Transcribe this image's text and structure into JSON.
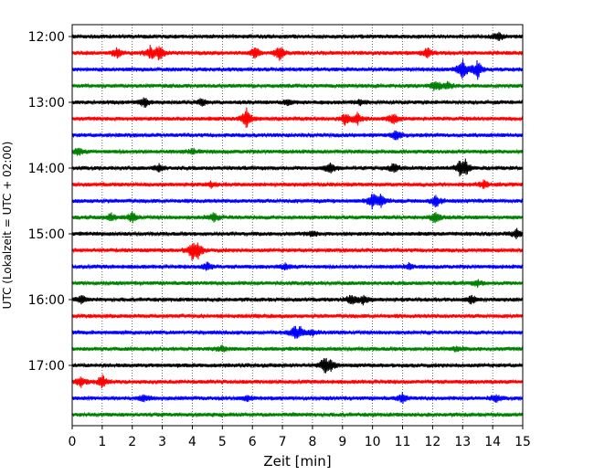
{
  "chart_data": {
    "type": "line",
    "title": "",
    "xlabel": "Zeit  [min]",
    "ylabel": "UTC (Lokalzeit = UTC + 02:00)",
    "xlim": [
      0,
      15
    ],
    "x_ticks": [
      0,
      1,
      2,
      3,
      4,
      5,
      6,
      7,
      8,
      9,
      10,
      11,
      12,
      13,
      14,
      15
    ],
    "y_tick_labels": [
      "12:00",
      "13:00",
      "14:00",
      "15:00",
      "16:00",
      "17:00"
    ],
    "vertical_grid": true,
    "trace_interval_minutes": 15,
    "trace_colors": [
      "#000000",
      "#ff0000",
      "#0000ff",
      "#008000"
    ],
    "traces": [
      {
        "start": "12:00",
        "events": [
          [
            14.2,
            0.5
          ]
        ]
      },
      {
        "start": "12:15",
        "events": [
          [
            1.5,
            0.6
          ],
          [
            2.6,
            0.7
          ],
          [
            2.9,
            0.8
          ],
          [
            6.1,
            0.6
          ],
          [
            6.9,
            0.8
          ],
          [
            11.8,
            0.6
          ]
        ]
      },
      {
        "start": "12:30",
        "events": [
          [
            13.0,
            1.2
          ],
          [
            13.5,
            1.0
          ]
        ]
      },
      {
        "start": "12:45",
        "events": [
          [
            12.1,
            0.6
          ],
          [
            12.5,
            0.4
          ]
        ]
      },
      {
        "start": "13:00",
        "events": [
          [
            2.4,
            0.5
          ],
          [
            4.3,
            0.4
          ],
          [
            7.2,
            0.4
          ],
          [
            9.6,
            0.3
          ]
        ]
      },
      {
        "start": "13:15",
        "events": [
          [
            5.8,
            1.1
          ],
          [
            9.1,
            0.7
          ],
          [
            9.5,
            0.6
          ],
          [
            10.7,
            0.6
          ]
        ]
      },
      {
        "start": "13:30",
        "events": [
          [
            10.8,
            0.6
          ]
        ]
      },
      {
        "start": "13:45",
        "events": [
          [
            0.2,
            0.4
          ],
          [
            4.0,
            0.3
          ]
        ]
      },
      {
        "start": "14:00",
        "events": [
          [
            2.9,
            0.4
          ],
          [
            8.6,
            0.6
          ],
          [
            10.7,
            0.5
          ],
          [
            12.9,
            0.6
          ],
          [
            13.1,
            0.8
          ]
        ]
      },
      {
        "start": "14:15",
        "events": [
          [
            13.7,
            0.4
          ],
          [
            4.6,
            0.3
          ]
        ]
      },
      {
        "start": "14:30",
        "events": [
          [
            10.0,
            0.8
          ],
          [
            10.3,
            0.7
          ],
          [
            12.1,
            0.7
          ]
        ]
      },
      {
        "start": "14:45",
        "events": [
          [
            1.3,
            0.4
          ],
          [
            2.0,
            0.5
          ],
          [
            4.7,
            0.5
          ],
          [
            12.1,
            0.7
          ]
        ]
      },
      {
        "start": "15:00",
        "events": [
          [
            8.0,
            0.3
          ],
          [
            14.8,
            0.5
          ]
        ]
      },
      {
        "start": "15:15",
        "events": [
          [
            4.0,
            0.9
          ],
          [
            4.2,
            0.7
          ]
        ]
      },
      {
        "start": "15:30",
        "events": [
          [
            4.5,
            0.5
          ],
          [
            7.1,
            0.3
          ],
          [
            11.2,
            0.3
          ]
        ]
      },
      {
        "start": "15:45",
        "events": [
          [
            13.5,
            0.3
          ]
        ]
      },
      {
        "start": "16:00",
        "events": [
          [
            0.3,
            0.4
          ],
          [
            9.3,
            0.6
          ],
          [
            9.7,
            0.5
          ],
          [
            13.3,
            0.5
          ]
        ]
      },
      {
        "start": "16:15",
        "events": []
      },
      {
        "start": "16:30",
        "events": [
          [
            7.4,
            0.6
          ],
          [
            7.6,
            0.4
          ],
          [
            8.0,
            0.3
          ]
        ]
      },
      {
        "start": "16:45",
        "events": [
          [
            5.0,
            0.3
          ],
          [
            12.8,
            0.3
          ]
        ]
      },
      {
        "start": "17:00",
        "events": [
          [
            8.4,
            0.8
          ],
          [
            8.6,
            0.5
          ]
        ]
      },
      {
        "start": "17:15",
        "events": [
          [
            0.3,
            0.6
          ],
          [
            1.0,
            0.7
          ]
        ]
      },
      {
        "start": "17:30",
        "events": [
          [
            2.4,
            0.4
          ],
          [
            5.8,
            0.3
          ],
          [
            11.0,
            0.5
          ],
          [
            14.1,
            0.4
          ]
        ]
      },
      {
        "start": "17:45",
        "events": []
      }
    ]
  }
}
